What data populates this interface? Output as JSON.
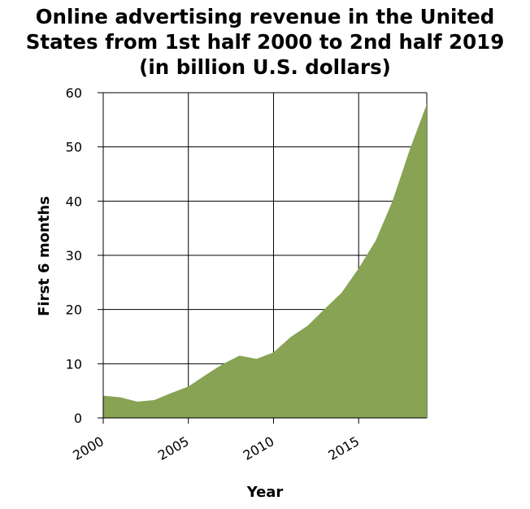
{
  "chart_data": {
    "type": "area",
    "title": "Online advertising revenue in the United States from 1st half 2000 to 2nd half 2019 (in billion U.S. dollars)",
    "xlabel": "Year",
    "ylabel": "First 6 months",
    "x": [
      2000,
      2001,
      2002,
      2003,
      2004,
      2005,
      2006,
      2007,
      2008,
      2009,
      2010,
      2011,
      2012,
      2013,
      2014,
      2015,
      2016,
      2017,
      2018,
      2019
    ],
    "series": [
      {
        "values": [
          4.1,
          3.8,
          3.0,
          3.3,
          4.6,
          5.8,
          7.9,
          9.9,
          11.5,
          10.9,
          12.1,
          14.9,
          17.0,
          20.1,
          23.1,
          27.6,
          32.7,
          40.1,
          49.5,
          57.9
        ]
      }
    ],
    "xlim": [
      2000,
      2019
    ],
    "ylim": [
      0,
      60
    ],
    "xticks": [
      2000,
      2005,
      2010,
      2015
    ],
    "yticks": [
      0,
      10,
      20,
      30,
      40,
      50,
      60
    ],
    "grid": true,
    "legend": "none",
    "colors": {
      "area_fill": "#87a353",
      "grid": "#000000",
      "axis": "#000000"
    }
  }
}
